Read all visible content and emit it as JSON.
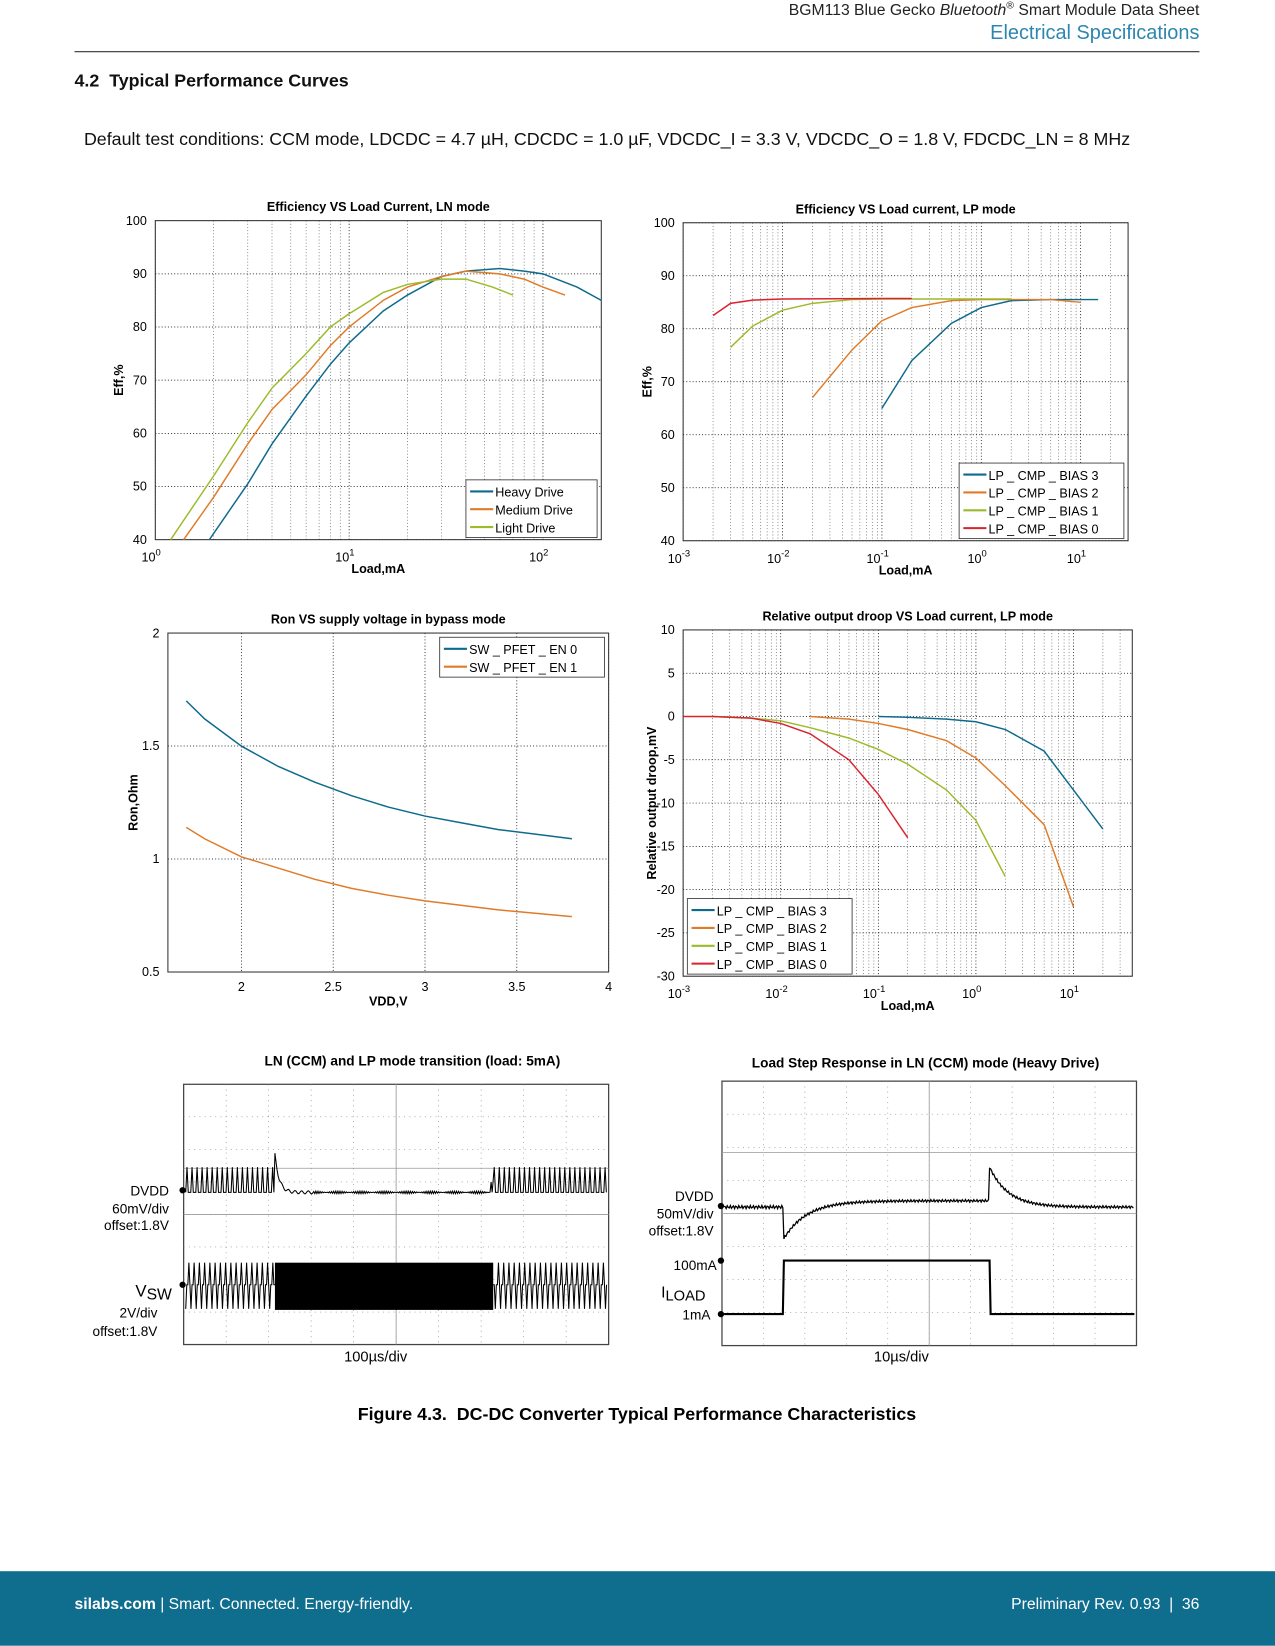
{
  "header": {
    "title_pre": "BGM113 Blue Gecko ",
    "title_italic": "Bluetooth",
    "title_sup": "®",
    "title_post": " Smart Module Data Sheet",
    "section": "Electrical Specifications"
  },
  "heading": "4.2  Typical Performance Curves",
  "conditions": "Default test conditions: CCM mode, LDCDC = 4.7 µH, CDCDC = 1.0 µF, VDCDC_I = 3.3 V, VDCDC_O = 1.8 V, FDCDC_LN = 8 MHz",
  "chart_data": [
    {
      "type": "line",
      "title": "Efficiency VS Load Current, LN mode",
      "xlabel": "Load,mA",
      "ylabel": "Eff,%",
      "xscale": "log",
      "xlim": [
        1,
        200
      ],
      "ylim": [
        40,
        100
      ],
      "xticks": [
        {
          "value": 1,
          "label": "10",
          "exponent": "0"
        },
        {
          "value": 10,
          "label": "10",
          "exponent": "1"
        },
        {
          "value": 100,
          "label": "10",
          "exponent": "2"
        }
      ],
      "yticks": [
        40,
        50,
        60,
        70,
        80,
        90,
        100
      ],
      "grid": true,
      "legend": "lower right",
      "series": [
        {
          "name": "Heavy Drive",
          "color": "#0e6a8c",
          "x": [
            1.9,
            3,
            4,
            6,
            8,
            10,
            15,
            20,
            30,
            40,
            60,
            80,
            100,
            150,
            200
          ],
          "values": [
            40,
            50.5,
            58,
            67,
            73,
            77,
            83,
            86,
            89.5,
            90.5,
            91,
            90.5,
            90,
            87.5,
            85
          ]
        },
        {
          "name": "Medium Drive",
          "color": "#e07b28",
          "x": [
            1.4,
            2,
            3,
            4,
            6,
            8,
            10,
            15,
            20,
            30,
            40,
            60,
            80,
            100,
            130
          ],
          "values": [
            40,
            48,
            58,
            64.5,
            71,
            76.5,
            80,
            85,
            87.5,
            89.5,
            90.5,
            90,
            89,
            87.5,
            86
          ]
        },
        {
          "name": "Light Drive",
          "color": "#9bbb2a",
          "x": [
            1.2,
            2,
            3,
            4,
            6,
            8,
            10,
            15,
            20,
            30,
            40,
            55,
            70
          ],
          "values": [
            40,
            52,
            62,
            68.5,
            75,
            80,
            82.5,
            86.5,
            88,
            89,
            89,
            87.5,
            86
          ]
        }
      ]
    },
    {
      "type": "line",
      "title": "Efficiency VS Load current, LP mode",
      "xlabel": "Load,mA",
      "ylabel": "Eff,%",
      "xscale": "log",
      "xlim": [
        0.001,
        30
      ],
      "ylim": [
        40,
        100
      ],
      "xticks": [
        {
          "value": 0.001,
          "label": "10",
          "exponent": "-3"
        },
        {
          "value": 0.01,
          "label": "10",
          "exponent": "-2"
        },
        {
          "value": 0.1,
          "label": "10",
          "exponent": "-1"
        },
        {
          "value": 1,
          "label": "10",
          "exponent": "0"
        },
        {
          "value": 10,
          "label": "10",
          "exponent": "1"
        }
      ],
      "yticks": [
        40,
        50,
        60,
        70,
        80,
        90,
        100
      ],
      "grid": true,
      "legend": "lower right",
      "series": [
        {
          "name": "LP _ CMP _ BIAS 3",
          "color": "#0e6a8c",
          "x": [
            0.1,
            0.2,
            0.5,
            1,
            2,
            5,
            10,
            15
          ],
          "values": [
            65,
            74,
            81,
            84,
            85.3,
            85.5,
            85.5,
            85.5
          ]
        },
        {
          "name": "LP _ CMP _ BIAS 2",
          "color": "#e07b28",
          "x": [
            0.02,
            0.05,
            0.1,
            0.2,
            0.5,
            1,
            5,
            10
          ],
          "values": [
            67,
            76,
            81.5,
            84,
            85.3,
            85.5,
            85.5,
            85
          ]
        },
        {
          "name": "LP _ CMP _ BIAS 1",
          "color": "#9bbb2a",
          "x": [
            0.003,
            0.005,
            0.01,
            0.02,
            0.05,
            0.1,
            0.2,
            1,
            2
          ],
          "values": [
            76.5,
            80.5,
            83.5,
            84.8,
            85.5,
            85.6,
            85.6,
            85.6,
            85.6
          ]
        },
        {
          "name": "LP _ CMP _ BIAS 0",
          "color": "#d9232f",
          "x": [
            0.002,
            0.003,
            0.005,
            0.01,
            0.1,
            0.2
          ],
          "values": [
            82.5,
            84.8,
            85.4,
            85.6,
            85.7,
            85.7
          ]
        }
      ]
    },
    {
      "type": "line",
      "title": "Ron VS supply voltage in bypass mode",
      "xlabel": "VDD,V",
      "ylabel": "Ron,Ohm",
      "xscale": "linear",
      "xlim": [
        1.6,
        4
      ],
      "ylim": [
        0.5,
        2
      ],
      "xticks": [
        2,
        2.5,
        3,
        3.5,
        4
      ],
      "yticks": [
        0.5,
        1,
        1.5,
        2
      ],
      "grid": true,
      "legend": "upper right",
      "series": [
        {
          "name": "SW _ PFET _ EN 0",
          "color": "#0e6a8c",
          "x": [
            1.7,
            1.8,
            2,
            2.2,
            2.4,
            2.6,
            2.8,
            3,
            3.2,
            3.4,
            3.6,
            3.8
          ],
          "values": [
            1.7,
            1.62,
            1.5,
            1.41,
            1.34,
            1.28,
            1.23,
            1.19,
            1.16,
            1.13,
            1.11,
            1.09
          ]
        },
        {
          "name": "SW _ PFET _ EN 1",
          "color": "#e07b28",
          "x": [
            1.7,
            1.8,
            2,
            2.2,
            2.4,
            2.6,
            2.8,
            3,
            3.2,
            3.4,
            3.6,
            3.8
          ],
          "values": [
            1.14,
            1.09,
            1.01,
            0.96,
            0.91,
            0.87,
            0.84,
            0.815,
            0.795,
            0.775,
            0.76,
            0.745
          ]
        }
      ]
    },
    {
      "type": "line",
      "title": "Relative output droop VS Load current, LP mode",
      "xlabel": "Load,mA",
      "ylabel": "Relative output droop,mV",
      "xscale": "log",
      "xlim": [
        0.001,
        40
      ],
      "ylim": [
        -30,
        10
      ],
      "xticks": [
        {
          "value": 0.001,
          "label": "10",
          "exponent": "-3"
        },
        {
          "value": 0.01,
          "label": "10",
          "exponent": "-2"
        },
        {
          "value": 0.1,
          "label": "10",
          "exponent": "-1"
        },
        {
          "value": 1,
          "label": "10",
          "exponent": "0"
        },
        {
          "value": 10,
          "label": "10",
          "exponent": "1"
        }
      ],
      "yticks": [
        -30,
        -25,
        -20,
        -15,
        -10,
        -5,
        0,
        5,
        10
      ],
      "grid": true,
      "legend": "lower left",
      "series": [
        {
          "name": "LP _ CMP _ BIAS 3",
          "color": "#0e6a8c",
          "x": [
            0.1,
            0.2,
            0.5,
            1,
            2,
            5,
            10,
            20
          ],
          "values": [
            0,
            -0.1,
            -0.3,
            -0.6,
            -1.5,
            -4,
            -8.5,
            -13
          ]
        },
        {
          "name": "LP _ CMP _ BIAS 2",
          "color": "#e07b28",
          "x": [
            0.02,
            0.05,
            0.1,
            0.2,
            0.5,
            1,
            2,
            5,
            10
          ],
          "values": [
            0,
            -0.3,
            -0.8,
            -1.5,
            -2.8,
            -4.8,
            -8,
            -12.5,
            -22
          ]
        },
        {
          "name": "LP _ CMP _ BIAS 1",
          "color": "#9bbb2a",
          "x": [
            0.002,
            0.005,
            0.01,
            0.02,
            0.05,
            0.1,
            0.2,
            0.5,
            1,
            2
          ],
          "values": [
            0,
            -0.2,
            -0.5,
            -1.3,
            -2.5,
            -3.8,
            -5.5,
            -8.5,
            -12,
            -18.5
          ]
        },
        {
          "name": "LP _ CMP _ BIAS 0",
          "color": "#d9232f",
          "x": [
            0.001,
            0.002,
            0.005,
            0.01,
            0.02,
            0.05,
            0.1,
            0.2
          ],
          "values": [
            0,
            0,
            -0.2,
            -0.8,
            -2,
            -5,
            -9,
            -14
          ]
        }
      ]
    }
  ],
  "scopes": [
    {
      "title": "LN (CCM) and LP mode transition (load: 5mA)",
      "timebase": "100µs/div",
      "channels": [
        {
          "name": "DVDD",
          "scale": "60mV/div",
          "offset": "offset:1.8V"
        },
        {
          "name": "V",
          "name_sub": "SW",
          "scale": "2V/div",
          "offset": "offset:1.8V"
        }
      ]
    },
    {
      "title": "Load Step Response in LN (CCM) mode (Heavy Drive)",
      "timebase": "10µs/div",
      "channels": [
        {
          "name": "DVDD",
          "scale": "50mV/div",
          "offset": "offset:1.8V"
        },
        {
          "name": "I",
          "name_sub": "LOAD",
          "level_high": "100mA",
          "level_low": "1mA"
        }
      ]
    }
  ],
  "caption": "Figure 4.3.  DC-DC Converter Typical Performance Characteristics",
  "footer": {
    "site": "silabs.com",
    "tagline": " | Smart. Connected. Energy-friendly.",
    "revision": "Preliminary Rev. 0.93  |  36"
  }
}
